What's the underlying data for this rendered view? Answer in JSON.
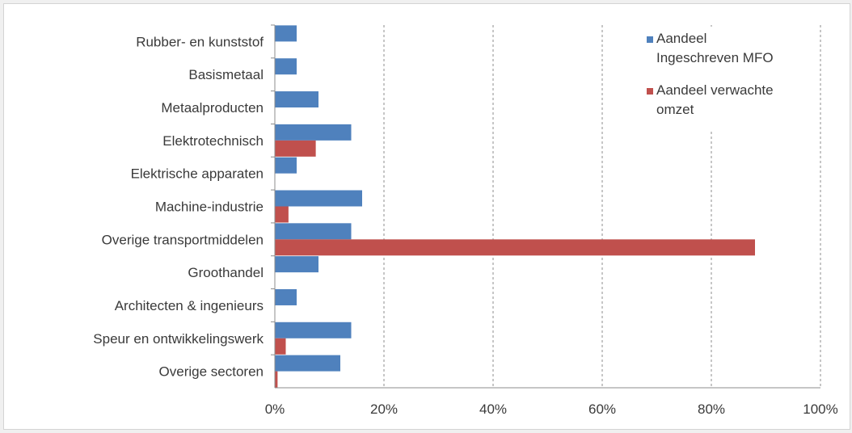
{
  "chart_data": {
    "type": "bar",
    "orientation": "horizontal",
    "categories": [
      "Rubber- en kunststof",
      "Basismetaal",
      "Metaalproducten",
      "Elektrotechnisch",
      "Elektrische apparaten",
      "Machine-industrie",
      "Overige transportmiddelen",
      "Groothandel",
      "Architecten & ingenieurs",
      "Speur en ontwikkelingswerk",
      "Overige sectoren"
    ],
    "series": [
      {
        "name": "Aandeel Ingeschreven MFO",
        "legend_lines": [
          "Aandeel",
          "Ingeschreven MFO"
        ],
        "color": "#4f81bd",
        "values": [
          4,
          4,
          8,
          14,
          4,
          16,
          14,
          8,
          4,
          14,
          12
        ]
      },
      {
        "name": "Aandeel verwachte omzet",
        "legend_lines": [
          "Aandeel verwachte",
          "omzet"
        ],
        "color": "#c0504d",
        "values": [
          0,
          0,
          0,
          7.5,
          0,
          2.5,
          88,
          0,
          0,
          2,
          0.5
        ]
      }
    ],
    "xlim": [
      0,
      100
    ],
    "x_ticks": [
      "0%",
      "20%",
      "40%",
      "60%",
      "80%",
      "100%"
    ],
    "grid": "vertical dashed",
    "legend_position": "top-right"
  }
}
